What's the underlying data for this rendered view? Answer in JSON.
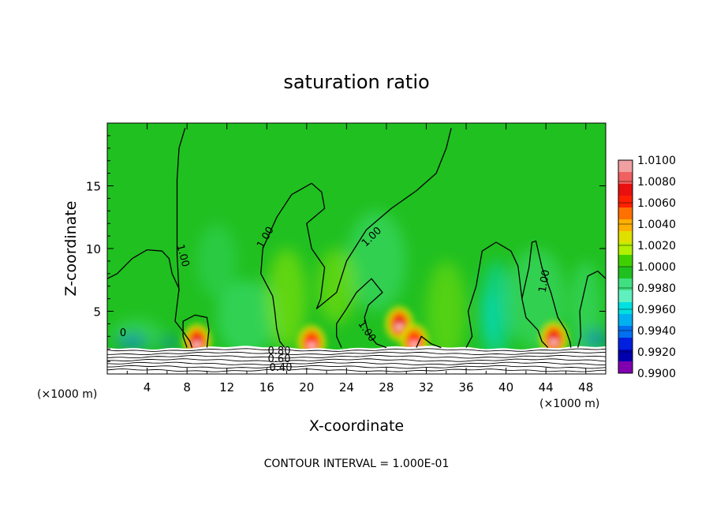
{
  "chart_data": {
    "type": "heatmap",
    "title": "saturation ratio",
    "xlabel": "X-coordinate",
    "ylabel": "Z-coordinate",
    "x_unit_label": "(×1000 m)",
    "x_unit_label_right": "(×1000 m)",
    "footer": "CONTOUR INTERVAL = 1.000E-01",
    "xlim": [
      0,
      50
    ],
    "ylim": [
      0,
      20
    ],
    "x_ticks": [
      4,
      8,
      12,
      16,
      20,
      24,
      28,
      32,
      36,
      40,
      44,
      48
    ],
    "x_tick_labels": [
      "4",
      "8",
      "12",
      "16",
      "20",
      "24",
      "28",
      "32",
      "36",
      "40",
      "44",
      "48"
    ],
    "y_ticks": [
      5,
      10,
      15
    ],
    "y_tick_labels": [
      "5",
      "10",
      "15"
    ],
    "colorbar": {
      "min": 0.99,
      "max": 1.01,
      "tick_labels": [
        "1.0100",
        "1.0080",
        "1.0060",
        "1.0040",
        "1.0020",
        "1.0000",
        "0.9980",
        "0.9960",
        "0.9940",
        "0.9920",
        "0.9900"
      ],
      "colors": [
        "#f0a0a0",
        "#f06060",
        "#e81010",
        "#ff2000",
        "#ff7000",
        "#ffb000",
        "#e0e000",
        "#b0f000",
        "#40d000",
        "#20c020",
        "#40e080",
        "#60f0c0",
        "#00e0e0",
        "#00b0f0",
        "#0070f0",
        "#0020e0",
        "#0000b0",
        "#8000b0"
      ]
    },
    "background_level": 1.0,
    "terrain_top_z": 2.1,
    "hot_spots": [
      {
        "x": 9.0,
        "z": 2.6,
        "level": 1.008
      },
      {
        "x": 20.5,
        "z": 2.5,
        "level": 1.006
      },
      {
        "x": 29.3,
        "z": 4.0,
        "level": 1.008
      },
      {
        "x": 30.8,
        "z": 2.6,
        "level": 1.006
      },
      {
        "x": 44.8,
        "z": 2.8,
        "level": 1.008
      }
    ],
    "contour_labels": [
      "0",
      "1.00",
      "1.00",
      "1.00",
      "1.00",
      "1.00",
      "0.80",
      "0.60",
      "0.40"
    ],
    "contours_1_00": [
      [
        [
          0.0,
          7.6
        ],
        [
          1.0,
          8.0
        ],
        [
          2.5,
          9.2
        ],
        [
          4.0,
          9.9
        ],
        [
          5.5,
          9.8
        ],
        [
          6.2,
          9.2
        ],
        [
          6.5,
          8.0
        ],
        [
          7.2,
          6.8
        ],
        [
          7.0,
          5.5
        ],
        [
          6.8,
          4.2
        ],
        [
          7.5,
          3.5
        ],
        [
          8.3,
          2.6
        ],
        [
          8.5,
          2.1
        ]
      ],
      [
        [
          7.2,
          6.6
        ],
        [
          7.0,
          9.5
        ],
        [
          7.0,
          12.5
        ],
        [
          7.0,
          15.5
        ],
        [
          7.2,
          18.0
        ],
        [
          7.8,
          19.6
        ]
      ],
      [
        [
          8.0,
          2.1
        ],
        [
          7.6,
          3.0
        ],
        [
          7.6,
          4.2
        ],
        [
          8.8,
          4.7
        ],
        [
          10.0,
          4.5
        ],
        [
          10.2,
          3.5
        ],
        [
          10.0,
          2.1
        ]
      ],
      [
        [
          15.6,
          10.0
        ],
        [
          15.4,
          8.0
        ],
        [
          16.6,
          6.2
        ],
        [
          16.8,
          5.0
        ],
        [
          17.0,
          3.6
        ],
        [
          17.3,
          2.6
        ],
        [
          17.8,
          2.1
        ]
      ],
      [
        [
          15.6,
          10.0
        ],
        [
          17.0,
          12.5
        ],
        [
          18.5,
          14.3
        ],
        [
          20.5,
          15.2
        ],
        [
          21.5,
          14.5
        ],
        [
          21.8,
          13.2
        ],
        [
          20.0,
          12.0
        ],
        [
          20.5,
          10.0
        ],
        [
          21.8,
          8.5
        ],
        [
          21.4,
          6.0
        ],
        [
          21.0,
          5.2
        ],
        [
          23.0,
          6.5
        ],
        [
          24.0,
          9.0
        ],
        [
          26.0,
          11.5
        ],
        [
          28.5,
          13.2
        ],
        [
          31.0,
          14.6
        ],
        [
          33.0,
          16.0
        ],
        [
          34.0,
          18.0
        ],
        [
          34.5,
          19.6
        ]
      ],
      [
        [
          23.5,
          2.1
        ],
        [
          23.0,
          3.0
        ],
        [
          23.0,
          4.0
        ],
        [
          24.0,
          5.2
        ],
        [
          25.0,
          6.5
        ],
        [
          26.5,
          7.6
        ],
        [
          27.6,
          6.5
        ],
        [
          26.2,
          5.5
        ],
        [
          25.8,
          4.5
        ],
        [
          26.2,
          3.2
        ],
        [
          27.0,
          2.4
        ],
        [
          28.0,
          2.1
        ]
      ],
      [
        [
          31.0,
          2.1
        ],
        [
          31.5,
          3.0
        ],
        [
          32.5,
          2.4
        ],
        [
          33.5,
          2.1
        ]
      ],
      [
        [
          36.0,
          2.1
        ],
        [
          36.6,
          3.0
        ],
        [
          36.2,
          5.0
        ],
        [
          37.0,
          7.0
        ],
        [
          37.6,
          9.8
        ],
        [
          39.0,
          10.5
        ],
        [
          40.5,
          9.8
        ],
        [
          41.2,
          8.6
        ],
        [
          41.6,
          6.0
        ],
        [
          42.0,
          4.5
        ],
        [
          43.2,
          3.5
        ],
        [
          43.6,
          2.6
        ],
        [
          44.2,
          2.1
        ]
      ],
      [
        [
          41.6,
          6.0
        ],
        [
          42.3,
          8.5
        ],
        [
          42.6,
          10.5
        ],
        [
          43.0,
          10.6
        ],
        [
          43.6,
          8.5
        ],
        [
          44.5,
          6.5
        ],
        [
          45.2,
          4.5
        ],
        [
          46.0,
          3.5
        ],
        [
          46.4,
          2.6
        ],
        [
          46.5,
          2.1
        ]
      ],
      [
        [
          47.2,
          2.1
        ],
        [
          47.5,
          3.0
        ],
        [
          47.4,
          5.0
        ],
        [
          48.2,
          7.8
        ],
        [
          49.2,
          8.2
        ],
        [
          50.0,
          7.6
        ]
      ]
    ]
  }
}
